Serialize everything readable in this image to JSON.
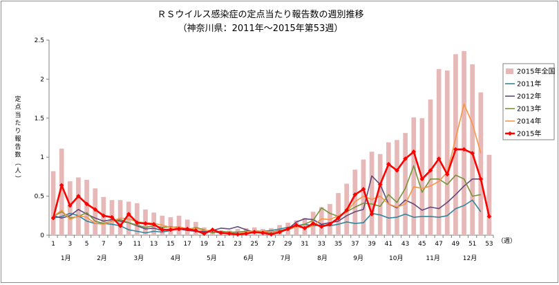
{
  "chart_data": {
    "type": "bar+line",
    "title": "ＲＳウイルス感染症の定点当たり報告数の週別推移",
    "subtitle": "（神奈川県：2011年～2015年第53週）",
    "ylabel": "定点当たり報告数（人）",
    "xlabel": "（週）",
    "ylim": [
      0,
      2.5
    ],
    "yticks": [
      "0",
      "0.5",
      "1",
      "1.5",
      "2",
      "2.5"
    ],
    "xticks": [
      "1",
      "3",
      "5",
      "7",
      "9",
      "11",
      "13",
      "15",
      "17",
      "19",
      "21",
      "23",
      "25",
      "27",
      "29",
      "31",
      "33",
      "35",
      "37",
      "39",
      "41",
      "43",
      "45",
      "47",
      "49",
      "51",
      "53"
    ],
    "months": [
      "1月",
      "2月",
      "3月",
      "4月",
      "5月",
      "6月",
      "7月",
      "8月",
      "9月",
      "10月",
      "11月",
      "12月"
    ],
    "legend_position": "right",
    "series": [
      {
        "name": "2015年全国",
        "kind": "bar",
        "color": "#e6b8b7",
        "values": [
          0.82,
          1.11,
          0.69,
          0.74,
          0.71,
          0.6,
          0.49,
          0.45,
          0.45,
          0.43,
          0.41,
          0.33,
          0.29,
          0.25,
          0.23,
          0.25,
          0.2,
          0.17,
          0.1,
          0.07,
          0.06,
          0.06,
          0.08,
          0.09,
          0.1,
          0.08,
          0.09,
          0.13,
          0.16,
          0.19,
          0.22,
          0.3,
          0.36,
          0.4,
          0.54,
          0.66,
          0.84,
          0.97,
          1.07,
          1.04,
          1.19,
          1.22,
          1.31,
          1.51,
          1.5,
          1.74,
          2.13,
          2.11,
          2.32,
          2.36,
          2.19,
          1.83,
          1.03
        ]
      },
      {
        "name": "2011年",
        "kind": "line",
        "color": "#31859c",
        "values": [
          0.22,
          0.24,
          0.28,
          0.25,
          0.18,
          0.15,
          0.15,
          0.14,
          0.12,
          0.07,
          0.05,
          0.03,
          0.05,
          0.04,
          0.06,
          0.08,
          0.07,
          0.05,
          0.04,
          0.04,
          0.03,
          0.03,
          0.04,
          0.05,
          0.04,
          0.05,
          0.06,
          0.08,
          0.1,
          0.12,
          0.14,
          0.12,
          0.13,
          0.12,
          0.14,
          0.17,
          0.15,
          0.16,
          0.28,
          0.26,
          0.22,
          0.23,
          0.27,
          0.23,
          0.24,
          0.24,
          0.23,
          0.25,
          0.34,
          0.38,
          0.45,
          0.3,
          null
        ]
      },
      {
        "name": "2012年",
        "kind": "line",
        "color": "#60497a",
        "values": [
          0.25,
          0.22,
          0.25,
          0.33,
          0.27,
          0.22,
          0.18,
          0.2,
          0.18,
          0.16,
          0.12,
          0.08,
          0.09,
          0.06,
          0.07,
          0.08,
          0.06,
          0.05,
          0.05,
          0.06,
          0.09,
          0.08,
          0.11,
          0.07,
          0.04,
          0.03,
          0.04,
          0.06,
          0.08,
          0.17,
          0.21,
          0.2,
          0.14,
          0.16,
          0.18,
          0.25,
          0.3,
          0.33,
          0.76,
          0.65,
          0.4,
          0.35,
          0.45,
          0.4,
          0.32,
          0.36,
          0.34,
          0.42,
          0.52,
          0.63,
          0.72,
          0.72,
          null
        ]
      },
      {
        "name": "2013年",
        "kind": "line",
        "color": "#77933c",
        "values": [
          0.24,
          0.3,
          0.22,
          0.24,
          0.29,
          0.18,
          0.15,
          0.18,
          0.2,
          0.16,
          0.13,
          0.1,
          0.12,
          0.1,
          0.11,
          0.09,
          0.07,
          0.1,
          0.07,
          0.03,
          0.05,
          0.04,
          0.04,
          0.05,
          0.04,
          0.05,
          0.03,
          0.06,
          0.07,
          0.11,
          0.14,
          0.19,
          0.35,
          0.28,
          0.24,
          0.3,
          0.36,
          0.41,
          0.4,
          0.37,
          0.52,
          0.42,
          0.6,
          0.89,
          0.55,
          0.72,
          0.72,
          0.65,
          0.77,
          0.72,
          0.5,
          0.52,
          null
        ]
      },
      {
        "name": "2014年",
        "kind": "line",
        "color": "#f79646",
        "values": [
          0.24,
          0.32,
          0.2,
          0.25,
          0.23,
          0.15,
          0.14,
          0.18,
          0.22,
          0.21,
          0.17,
          0.16,
          0.15,
          0.13,
          0.1,
          0.11,
          0.08,
          0.09,
          0.06,
          0.06,
          0.03,
          0.03,
          0.02,
          0.04,
          0.06,
          0.05,
          0.04,
          0.05,
          0.07,
          0.11,
          0.09,
          0.12,
          0.21,
          0.2,
          0.25,
          0.3,
          0.43,
          0.5,
          0.46,
          0.5,
          0.4,
          0.36,
          0.4,
          0.62,
          0.6,
          0.63,
          0.69,
          0.81,
          1.24,
          1.68,
          1.43,
          1.05,
          null
        ]
      },
      {
        "name": "2015年",
        "kind": "line-marker",
        "color": "#ff0000",
        "values": [
          0.22,
          0.64,
          0.38,
          0.5,
          0.4,
          0.33,
          0.25,
          0.23,
          0.12,
          0.27,
          0.16,
          0.15,
          0.14,
          0.07,
          0.07,
          0.08,
          0.08,
          0.06,
          0.02,
          0.07,
          0.03,
          0.02,
          0.01,
          0.02,
          0.04,
          0.03,
          0.01,
          0.04,
          0.08,
          0.13,
          0.09,
          0.15,
          0.11,
          0.14,
          0.22,
          0.32,
          0.52,
          0.59,
          0.27,
          0.65,
          0.91,
          0.83,
          0.98,
          1.07,
          0.72,
          0.83,
          0.98,
          0.78,
          1.1,
          1.1,
          1.05,
          0.72,
          0.24
        ]
      }
    ]
  }
}
